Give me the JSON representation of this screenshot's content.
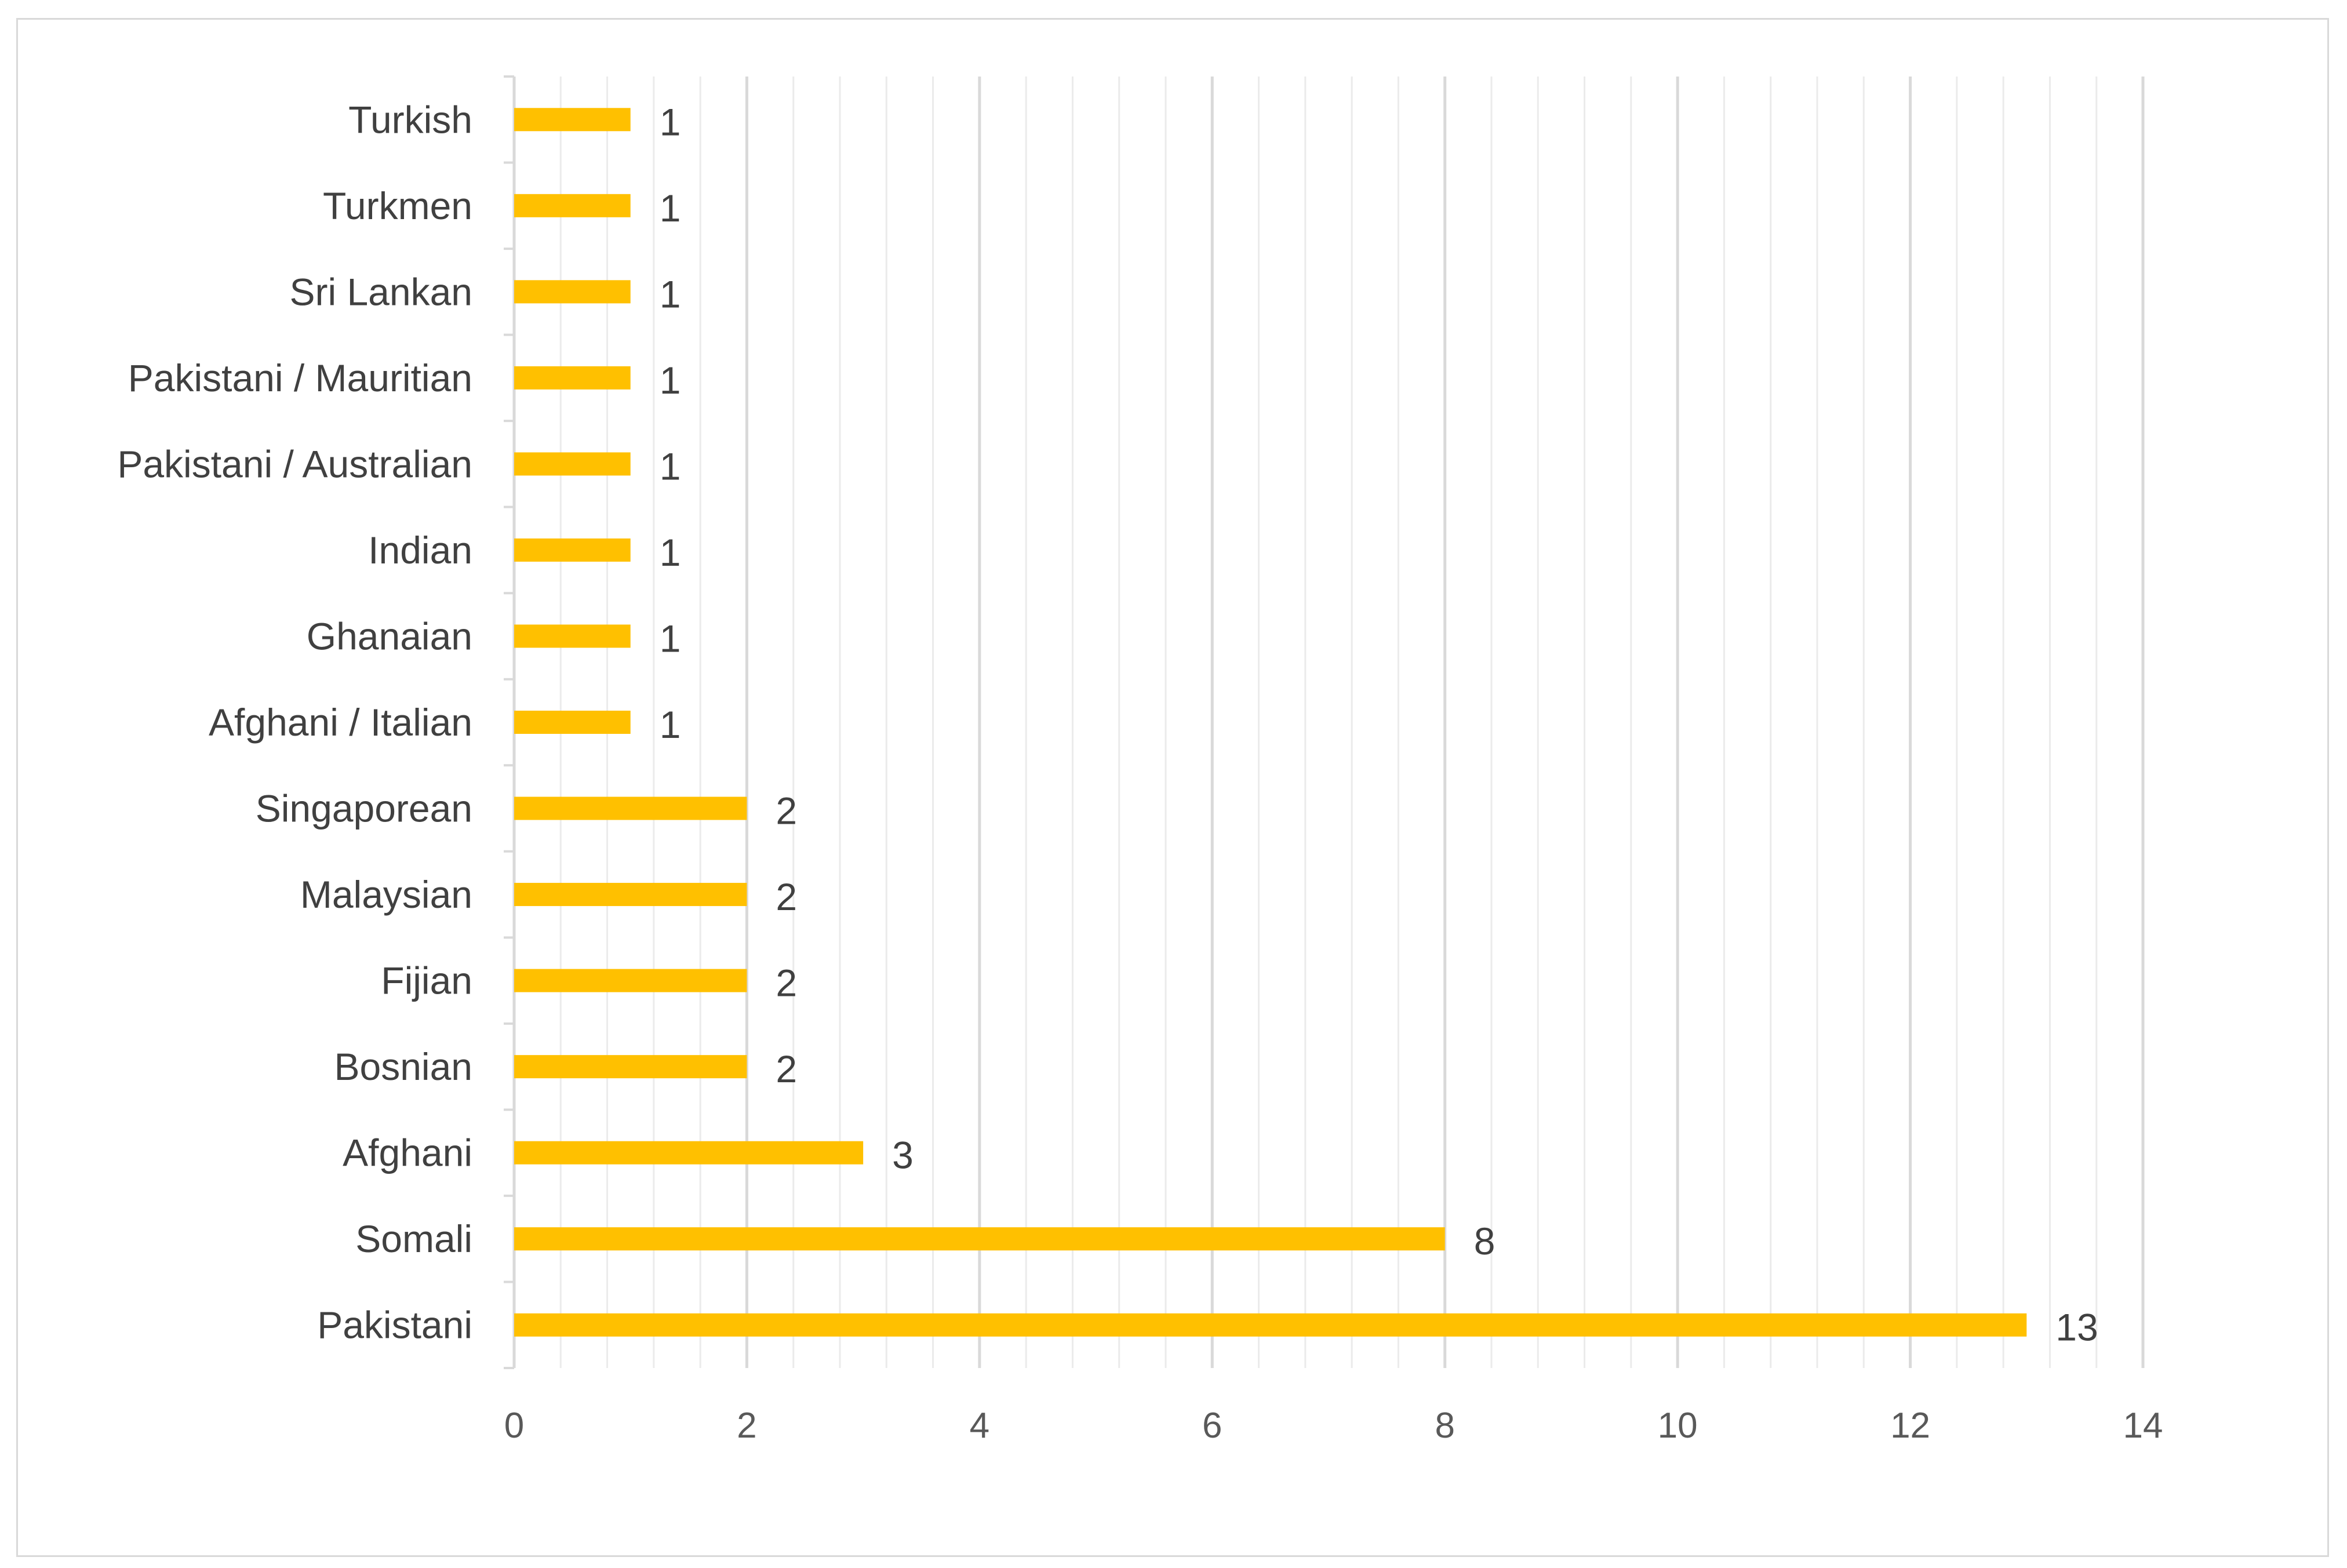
{
  "chart_data": {
    "type": "bar",
    "orientation": "horizontal",
    "title": "",
    "xlabel": "",
    "ylabel": "",
    "categories": [
      "Turkish",
      "Turkmen",
      "Sri Lankan",
      "Pakistani / Mauritian",
      "Pakistani / Australian",
      "Indian",
      "Ghanaian",
      "Afghani / Italian",
      "Singaporean",
      "Malaysian",
      "Fijian",
      "Bosnian",
      "Afghani",
      "Somali",
      "Pakistani"
    ],
    "values": [
      1,
      1,
      1,
      1,
      1,
      1,
      1,
      1,
      2,
      2,
      2,
      2,
      3,
      8,
      13
    ],
    "data_labels": [
      "1",
      "1",
      "1",
      "1",
      "1",
      "1",
      "1",
      "1",
      "2",
      "2",
      "2",
      "2",
      "3",
      "8",
      "13"
    ],
    "xlim": [
      0,
      14
    ],
    "x_ticks": [
      0,
      2,
      4,
      6,
      8,
      10,
      12,
      14
    ],
    "x_tick_labels": [
      "0",
      "2",
      "4",
      "6",
      "8",
      "10",
      "12",
      "14"
    ],
    "minor_tick_step": 0.4,
    "grid": true,
    "legend": "none",
    "bar_color": "#FFC000",
    "major_grid_color": "#D9D9D9",
    "minor_grid_color": "#EBEBEB",
    "axis_color": "#D9D9D9",
    "text_color": "#404040"
  }
}
